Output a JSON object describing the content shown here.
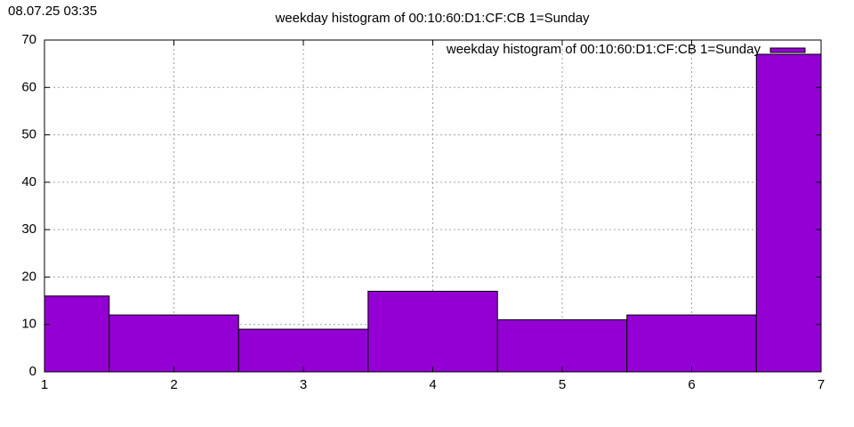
{
  "chart_data": {
    "type": "bar",
    "timestamp": "08.07.25 03:35",
    "title": "weekday histogram of 00:10:60:D1:CF:CB 1=Sunday",
    "x": [
      1,
      2,
      3,
      4,
      5,
      6,
      7
    ],
    "series": [
      {
        "name": "weekday histogram of 00:10:60:D1:CF:CB 1=Sunday",
        "color": "#9400d3",
        "values": [
          16,
          12,
          9,
          17,
          11,
          12,
          67
        ]
      }
    ],
    "box_width": 1,
    "xlim": [
      1,
      7
    ],
    "xticks": [
      1,
      2,
      3,
      4,
      5,
      6,
      7
    ],
    "ylim": [
      0,
      70
    ],
    "yticks": [
      0,
      10,
      20,
      30,
      40,
      50,
      60,
      70
    ],
    "grid": true,
    "legend": "top-right"
  }
}
